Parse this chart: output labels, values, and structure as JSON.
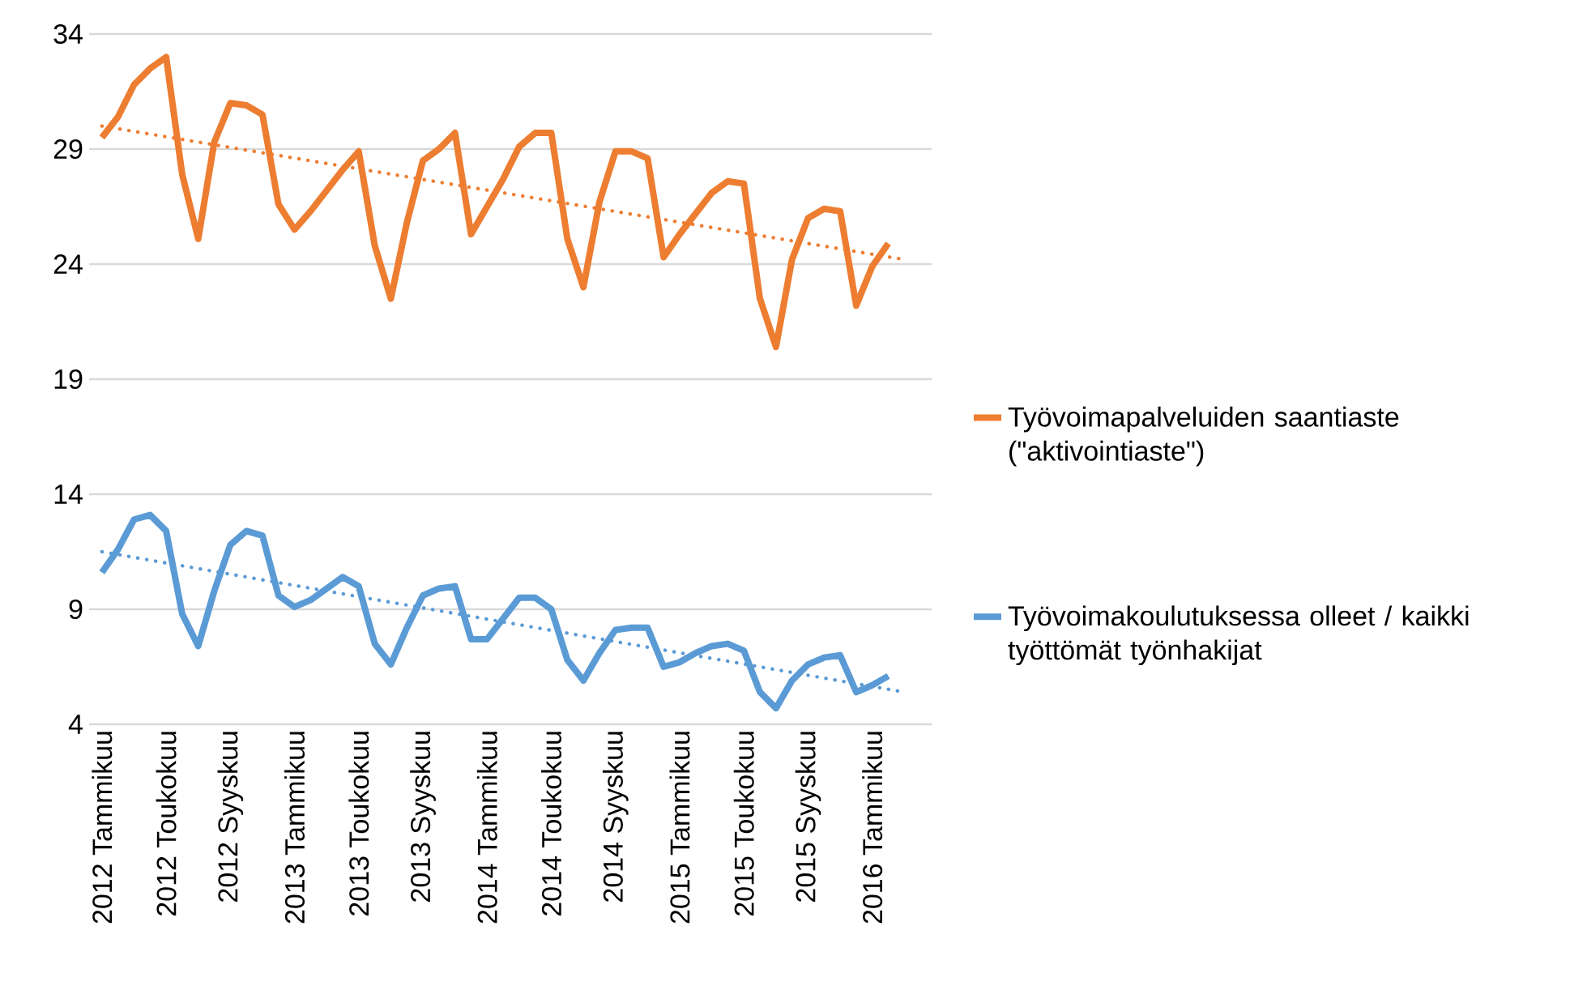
{
  "chart_data": {
    "type": "line",
    "categories": [
      "2012 Tammikuu",
      null,
      null,
      null,
      "2012 Toukokuu",
      null,
      null,
      null,
      "2012 Syyskuu",
      null,
      null,
      null,
      "2013 Tammikuu",
      null,
      null,
      null,
      "2013 Toukokuu",
      null,
      null,
      null,
      "2013 Syyskuu",
      null,
      null,
      null,
      "2014 Tammikuu",
      null,
      null,
      null,
      "2014 Toukokuu",
      null,
      null,
      null,
      "2014 Syyskuu",
      null,
      null,
      null,
      "2015 Tammikuu",
      null,
      null,
      null,
      "2015 Toukokuu",
      null,
      null,
      null,
      "2015 Syyskuu",
      null,
      null,
      null,
      "2016 Tammikuu",
      null,
      null
    ],
    "series": [
      {
        "name": "Työvoimapalveluiden saantiaste (\"aktivointiaste\")",
        "color": "#ed7d31",
        "values": [
          29.5,
          30.4,
          31.8,
          32.5,
          33.0,
          27.9,
          25.1,
          29.3,
          31.0,
          30.9,
          30.5,
          26.6,
          25.5,
          26.3,
          27.2,
          28.1,
          28.9,
          24.8,
          22.5,
          25.8,
          28.5,
          29.0,
          29.7,
          25.3,
          26.5,
          27.7,
          29.1,
          29.7,
          29.7,
          25.1,
          23.0,
          26.7,
          28.9,
          28.9,
          28.6,
          24.3,
          25.3,
          26.2,
          27.1,
          27.6,
          27.5,
          22.5,
          20.4,
          24.2,
          26.0,
          26.4,
          26.3,
          22.2,
          23.9,
          24.9,
          null
        ]
      },
      {
        "name": "Työvoimakoulutuksessa olleet / kaikki työttömät työnhakijat",
        "color": "#5b9bd5",
        "values": [
          10.6,
          11.6,
          12.9,
          13.1,
          12.4,
          8.8,
          7.4,
          9.8,
          11.8,
          12.4,
          12.2,
          9.6,
          9.1,
          9.4,
          9.9,
          10.4,
          10.0,
          7.5,
          6.6,
          8.2,
          9.6,
          9.9,
          10.0,
          7.7,
          7.7,
          8.6,
          9.5,
          9.5,
          9.0,
          6.8,
          5.9,
          7.1,
          8.1,
          8.2,
          8.2,
          6.5,
          6.7,
          7.1,
          7.4,
          7.5,
          7.2,
          5.4,
          4.7,
          5.9,
          6.6,
          6.9,
          7.0,
          5.4,
          5.7,
          6.1,
          null
        ]
      },
      {
        "type": "line",
        "line_style": "dotted",
        "color": "#ed7d31",
        "values": [
          30.0,
          null,
          null,
          null,
          null,
          null,
          null,
          null,
          null,
          null,
          null,
          null,
          null,
          null,
          null,
          null,
          null,
          null,
          null,
          null,
          null,
          null,
          null,
          null,
          null,
          null,
          null,
          null,
          null,
          null,
          null,
          null,
          null,
          null,
          null,
          null,
          null,
          null,
          null,
          null,
          null,
          null,
          null,
          null,
          null,
          null,
          null,
          null,
          null,
          null,
          24.2
        ]
      },
      {
        "type": "line",
        "line_style": "dotted",
        "color": "#5b9bd5",
        "values": [
          11.5,
          null,
          null,
          null,
          null,
          null,
          null,
          null,
          null,
          null,
          null,
          null,
          null,
          null,
          null,
          null,
          null,
          null,
          null,
          null,
          null,
          null,
          null,
          null,
          null,
          null,
          null,
          null,
          null,
          null,
          null,
          null,
          null,
          null,
          null,
          null,
          null,
          null,
          null,
          null,
          null,
          null,
          null,
          null,
          null,
          null,
          null,
          null,
          null,
          null,
          5.4
        ]
      }
    ],
    "ylim": [
      4,
      34
    ],
    "yticks": [
      4,
      9,
      14,
      19,
      24,
      29,
      34
    ],
    "grid": "y",
    "legend": "right"
  }
}
